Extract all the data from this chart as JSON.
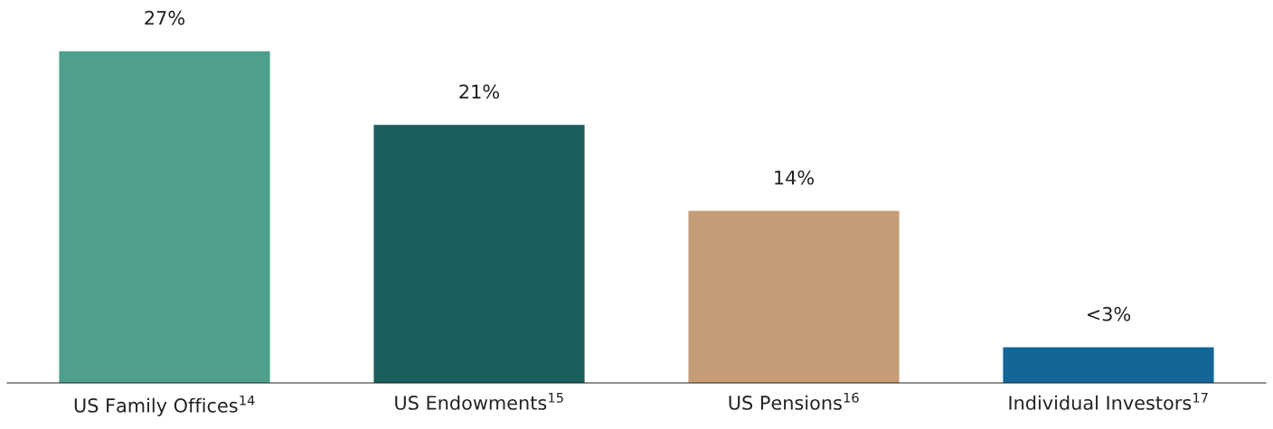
{
  "chart_data": {
    "type": "bar",
    "categories": [
      "US Family Offices$^{14}$",
      "US Endowments$^{15}$",
      "US Pensions$^{16}$",
      "Individual Investors$^{17}$"
    ],
    "values": [
      27,
      21,
      14,
      2.9
    ],
    "colors": [
      "#4e9f8c",
      "#1b5e5c",
      "#c49c77",
      "#136696"
    ],
    "value_labels": [
      "27%",
      "21%",
      "14%",
      "<3%"
    ],
    "grid": false,
    "legend": false
  }
}
